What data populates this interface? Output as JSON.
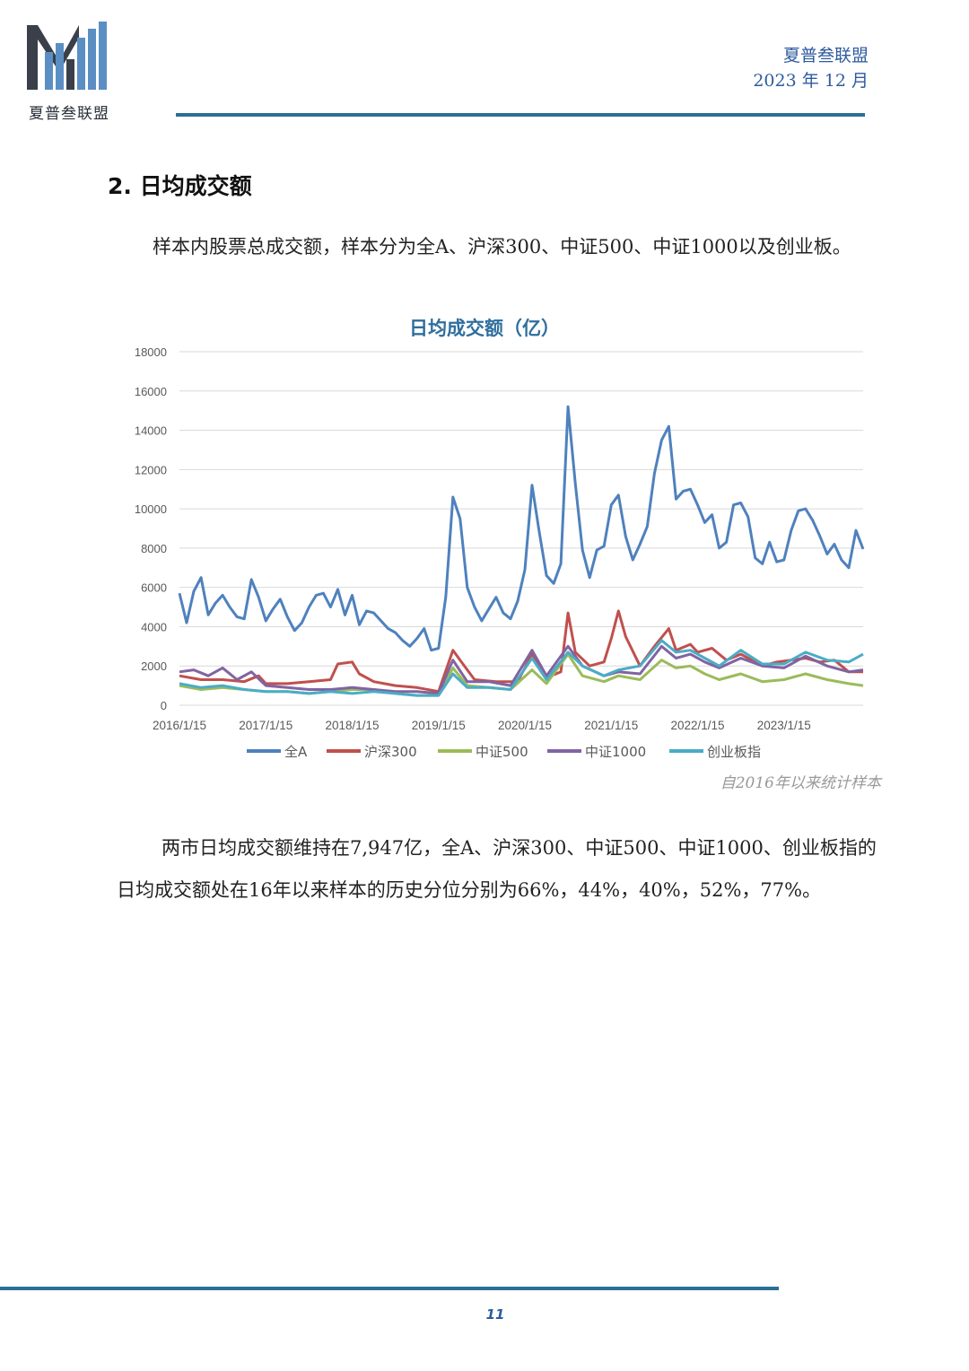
{
  "header": {
    "logo_text": "夏普叁联盟",
    "org": "夏普叁联盟",
    "date": "2023 年 12 月"
  },
  "section": {
    "title": "2.  日均成交额"
  },
  "intro": "样本内股票总成交额，样本分为全A、沪深300、中证500、中证1000以及创业板。",
  "chart_note": "自2016年以来统计样本",
  "summary": "两市日均成交额维持在7,947亿，全A、沪深300、中证500、中证1000、创业板指的日均成交额处在16年以来样本的历史分位分别为66%，44%，40%，52%，77%。",
  "page_number": "11",
  "chart_data": {
    "type": "line",
    "title": "日均成交额（亿）",
    "xlabel": "",
    "ylabel": "",
    "ylim": [
      0,
      18000
    ],
    "yticks": [
      0,
      2000,
      4000,
      6000,
      8000,
      10000,
      12000,
      14000,
      16000,
      18000
    ],
    "x_tick_labels": [
      "2016/1/15",
      "2017/1/15",
      "2018/1/15",
      "2019/1/15",
      "2020/1/15",
      "2021/1/15",
      "2022/1/15",
      "2023/1/15"
    ],
    "x_start": "2016/1/15",
    "x_end": "2023/12/15",
    "grid": true,
    "legend_position": "bottom",
    "series": [
      {
        "name": "全A",
        "color": "#4f81bd",
        "points": [
          [
            "2016/1/15",
            5700
          ],
          [
            "2016/2/15",
            4200
          ],
          [
            "2016/3/15",
            5800
          ],
          [
            "2016/4/15",
            6500
          ],
          [
            "2016/5/15",
            4600
          ],
          [
            "2016/6/15",
            5200
          ],
          [
            "2016/7/15",
            5600
          ],
          [
            "2016/8/15",
            5000
          ],
          [
            "2016/9/15",
            4500
          ],
          [
            "2016/10/15",
            4400
          ],
          [
            "2016/11/15",
            6400
          ],
          [
            "2016/12/15",
            5500
          ],
          [
            "2017/1/15",
            4300
          ],
          [
            "2017/2/15",
            4900
          ],
          [
            "2017/3/15",
            5400
          ],
          [
            "2017/4/15",
            4500
          ],
          [
            "2017/5/15",
            3800
          ],
          [
            "2017/6/15",
            4200
          ],
          [
            "2017/7/15",
            5000
          ],
          [
            "2017/8/15",
            5600
          ],
          [
            "2017/9/15",
            5700
          ],
          [
            "2017/10/15",
            5000
          ],
          [
            "2017/11/15",
            5900
          ],
          [
            "2017/12/15",
            4600
          ],
          [
            "2018/1/15",
            5600
          ],
          [
            "2018/2/15",
            4100
          ],
          [
            "2018/3/15",
            4800
          ],
          [
            "2018/4/15",
            4700
          ],
          [
            "2018/5/15",
            4300
          ],
          [
            "2018/6/15",
            3900
          ],
          [
            "2018/7/15",
            3700
          ],
          [
            "2018/8/15",
            3300
          ],
          [
            "2018/9/15",
            3000
          ],
          [
            "2018/10/15",
            3400
          ],
          [
            "2018/11/15",
            3900
          ],
          [
            "2018/12/15",
            2800
          ],
          [
            "2019/1/15",
            2900
          ],
          [
            "2019/2/15",
            5500
          ],
          [
            "2019/3/15",
            10600
          ],
          [
            "2019/4/15",
            9500
          ],
          [
            "2019/5/15",
            6000
          ],
          [
            "2019/6/15",
            5000
          ],
          [
            "2019/7/15",
            4300
          ],
          [
            "2019/8/15",
            4900
          ],
          [
            "2019/9/15",
            5500
          ],
          [
            "2019/10/15",
            4700
          ],
          [
            "2019/11/15",
            4400
          ],
          [
            "2019/12/15",
            5300
          ],
          [
            "2020/1/15",
            6900
          ],
          [
            "2020/2/15",
            11200
          ],
          [
            "2020/3/15",
            8800
          ],
          [
            "2020/4/15",
            6600
          ],
          [
            "2020/5/15",
            6200
          ],
          [
            "2020/6/15",
            7200
          ],
          [
            "2020/7/15",
            15200
          ],
          [
            "2020/8/15",
            11300
          ],
          [
            "2020/9/15",
            7900
          ],
          [
            "2020/10/15",
            6500
          ],
          [
            "2020/11/15",
            7900
          ],
          [
            "2020/12/15",
            8100
          ],
          [
            "2021/1/15",
            10200
          ],
          [
            "2021/2/15",
            10700
          ],
          [
            "2021/3/15",
            8600
          ],
          [
            "2021/4/15",
            7400
          ],
          [
            "2021/5/15",
            8200
          ],
          [
            "2021/6/15",
            9100
          ],
          [
            "2021/7/15",
            11800
          ],
          [
            "2021/8/15",
            13500
          ],
          [
            "2021/9/15",
            14200
          ],
          [
            "2021/10/15",
            10500
          ],
          [
            "2021/11/15",
            10900
          ],
          [
            "2021/12/15",
            11000
          ],
          [
            "2022/1/15",
            10200
          ],
          [
            "2022/2/15",
            9300
          ],
          [
            "2022/3/15",
            9700
          ],
          [
            "2022/4/15",
            8000
          ],
          [
            "2022/5/15",
            8300
          ],
          [
            "2022/6/15",
            10200
          ],
          [
            "2022/7/15",
            10300
          ],
          [
            "2022/8/15",
            9600
          ],
          [
            "2022/9/15",
            7500
          ],
          [
            "2022/10/15",
            7200
          ],
          [
            "2022/11/15",
            8300
          ],
          [
            "2022/12/15",
            7300
          ],
          [
            "2023/1/15",
            7400
          ],
          [
            "2023/2/15",
            8900
          ],
          [
            "2023/3/15",
            9900
          ],
          [
            "2023/4/15",
            10000
          ],
          [
            "2023/5/15",
            9400
          ],
          [
            "2023/6/15",
            8600
          ],
          [
            "2023/7/15",
            7700
          ],
          [
            "2023/8/15",
            8200
          ],
          [
            "2023/9/15",
            7400
          ],
          [
            "2023/10/15",
            7000
          ],
          [
            "2023/11/15",
            8900
          ],
          [
            "2023/12/15",
            7947
          ]
        ]
      },
      {
        "name": "沪深300",
        "color": "#c0504d",
        "points": [
          [
            "2016/1/15",
            1500
          ],
          [
            "2016/4/15",
            1300
          ],
          [
            "2016/7/15",
            1300
          ],
          [
            "2016/10/15",
            1200
          ],
          [
            "2016/12/15",
            1500
          ],
          [
            "2017/1/15",
            1100
          ],
          [
            "2017/4/15",
            1100
          ],
          [
            "2017/7/15",
            1200
          ],
          [
            "2017/10/15",
            1300
          ],
          [
            "2017/11/15",
            2100
          ],
          [
            "2018/1/15",
            2200
          ],
          [
            "2018/2/15",
            1600
          ],
          [
            "2018/4/15",
            1200
          ],
          [
            "2018/7/15",
            1000
          ],
          [
            "2018/10/15",
            900
          ],
          [
            "2019/1/15",
            700
          ],
          [
            "2019/3/15",
            2800
          ],
          [
            "2019/4/15",
            2300
          ],
          [
            "2019/6/15",
            1300
          ],
          [
            "2019/9/15",
            1200
          ],
          [
            "2019/12/15",
            1200
          ],
          [
            "2020/2/15",
            2600
          ],
          [
            "2020/4/15",
            1400
          ],
          [
            "2020/6/15",
            1700
          ],
          [
            "2020/7/15",
            4700
          ],
          [
            "2020/8/15",
            2700
          ],
          [
            "2020/10/15",
            2000
          ],
          [
            "2020/12/15",
            2200
          ],
          [
            "2021/1/15",
            3400
          ],
          [
            "2021/2/15",
            4800
          ],
          [
            "2021/3/15",
            3500
          ],
          [
            "2021/5/15",
            2000
          ],
          [
            "2021/7/15",
            3000
          ],
          [
            "2021/9/15",
            3900
          ],
          [
            "2021/10/15",
            2800
          ],
          [
            "2021/12/15",
            3100
          ],
          [
            "2022/1/15",
            2700
          ],
          [
            "2022/3/15",
            2900
          ],
          [
            "2022/5/15",
            2300
          ],
          [
            "2022/7/15",
            2600
          ],
          [
            "2022/10/15",
            2000
          ],
          [
            "2022/12/15",
            2200
          ],
          [
            "2023/2/15",
            2300
          ],
          [
            "2023/4/15",
            2400
          ],
          [
            "2023/6/15",
            2200
          ],
          [
            "2023/8/15",
            2300
          ],
          [
            "2023/10/15",
            1700
          ],
          [
            "2023/12/15",
            1700
          ]
        ]
      },
      {
        "name": "中证500",
        "color": "#9bbb59",
        "points": [
          [
            "2016/1/15",
            1000
          ],
          [
            "2016/4/15",
            800
          ],
          [
            "2016/7/15",
            900
          ],
          [
            "2016/10/15",
            800
          ],
          [
            "2017/1/15",
            700
          ],
          [
            "2017/4/15",
            700
          ],
          [
            "2017/7/15",
            600
          ],
          [
            "2017/10/15",
            700
          ],
          [
            "2018/1/15",
            800
          ],
          [
            "2018/4/15",
            800
          ],
          [
            "2018/7/15",
            600
          ],
          [
            "2018/10/15",
            500
          ],
          [
            "2019/1/15",
            500
          ],
          [
            "2019/3/15",
            1900
          ],
          [
            "2019/5/15",
            1000
          ],
          [
            "2019/8/15",
            900
          ],
          [
            "2019/11/15",
            800
          ],
          [
            "2020/2/15",
            1800
          ],
          [
            "2020/4/15",
            1100
          ],
          [
            "2020/7/15",
            2600
          ],
          [
            "2020/9/15",
            1500
          ],
          [
            "2020/12/15",
            1200
          ],
          [
            "2021/2/15",
            1500
          ],
          [
            "2021/5/15",
            1300
          ],
          [
            "2021/8/15",
            2300
          ],
          [
            "2021/10/15",
            1900
          ],
          [
            "2021/12/15",
            2000
          ],
          [
            "2022/2/15",
            1600
          ],
          [
            "2022/4/15",
            1300
          ],
          [
            "2022/7/15",
            1600
          ],
          [
            "2022/10/15",
            1200
          ],
          [
            "2023/1/15",
            1300
          ],
          [
            "2023/4/15",
            1600
          ],
          [
            "2023/7/15",
            1300
          ],
          [
            "2023/10/15",
            1100
          ],
          [
            "2023/12/15",
            1000
          ]
        ]
      },
      {
        "name": "中证1000",
        "color": "#8064a2",
        "points": [
          [
            "2016/1/15",
            1700
          ],
          [
            "2016/3/15",
            1800
          ],
          [
            "2016/5/15",
            1500
          ],
          [
            "2016/7/15",
            1900
          ],
          [
            "2016/9/15",
            1300
          ],
          [
            "2016/11/15",
            1700
          ],
          [
            "2017/1/15",
            1000
          ],
          [
            "2017/4/15",
            900
          ],
          [
            "2017/7/15",
            800
          ],
          [
            "2017/10/15",
            800
          ],
          [
            "2018/1/15",
            900
          ],
          [
            "2018/4/15",
            800
          ],
          [
            "2018/7/15",
            700
          ],
          [
            "2018/10/15",
            700
          ],
          [
            "2019/1/15",
            600
          ],
          [
            "2019/3/15",
            2300
          ],
          [
            "2019/5/15",
            1200
          ],
          [
            "2019/8/15",
            1200
          ],
          [
            "2019/11/15",
            1000
          ],
          [
            "2020/2/15",
            2800
          ],
          [
            "2020/4/15",
            1500
          ],
          [
            "2020/7/15",
            3000
          ],
          [
            "2020/9/15",
            2000
          ],
          [
            "2020/12/15",
            1500
          ],
          [
            "2021/2/15",
            1700
          ],
          [
            "2021/5/15",
            1600
          ],
          [
            "2021/8/15",
            3000
          ],
          [
            "2021/10/15",
            2400
          ],
          [
            "2021/12/15",
            2600
          ],
          [
            "2022/2/15",
            2200
          ],
          [
            "2022/4/15",
            1900
          ],
          [
            "2022/7/15",
            2400
          ],
          [
            "2022/10/15",
            2000
          ],
          [
            "2023/1/15",
            1900
          ],
          [
            "2023/4/15",
            2500
          ],
          [
            "2023/7/15",
            2000
          ],
          [
            "2023/10/15",
            1700
          ],
          [
            "2023/12/15",
            1800
          ]
        ]
      },
      {
        "name": "创业板指",
        "color": "#4bacc6",
        "points": [
          [
            "2016/1/15",
            1100
          ],
          [
            "2016/4/15",
            900
          ],
          [
            "2016/7/15",
            1000
          ],
          [
            "2016/10/15",
            800
          ],
          [
            "2017/1/15",
            700
          ],
          [
            "2017/4/15",
            700
          ],
          [
            "2017/7/15",
            600
          ],
          [
            "2017/10/15",
            700
          ],
          [
            "2018/1/15",
            600
          ],
          [
            "2018/4/15",
            700
          ],
          [
            "2018/7/15",
            600
          ],
          [
            "2018/10/15",
            500
          ],
          [
            "2019/1/15",
            500
          ],
          [
            "2019/3/15",
            1600
          ],
          [
            "2019/5/15",
            900
          ],
          [
            "2019/8/15",
            900
          ],
          [
            "2019/11/15",
            800
          ],
          [
            "2020/2/15",
            2400
          ],
          [
            "2020/4/15",
            1300
          ],
          [
            "2020/7/15",
            2700
          ],
          [
            "2020/9/15",
            2000
          ],
          [
            "2020/12/15",
            1500
          ],
          [
            "2021/2/15",
            1800
          ],
          [
            "2021/5/15",
            2000
          ],
          [
            "2021/8/15",
            3300
          ],
          [
            "2021/10/15",
            2700
          ],
          [
            "2021/12/15",
            2800
          ],
          [
            "2022/2/15",
            2400
          ],
          [
            "2022/4/15",
            2000
          ],
          [
            "2022/7/15",
            2800
          ],
          [
            "2022/10/15",
            2100
          ],
          [
            "2023/1/15",
            2100
          ],
          [
            "2023/4/15",
            2700
          ],
          [
            "2023/7/15",
            2300
          ],
          [
            "2023/10/15",
            2200
          ],
          [
            "2023/12/15",
            2600
          ]
        ]
      }
    ]
  }
}
